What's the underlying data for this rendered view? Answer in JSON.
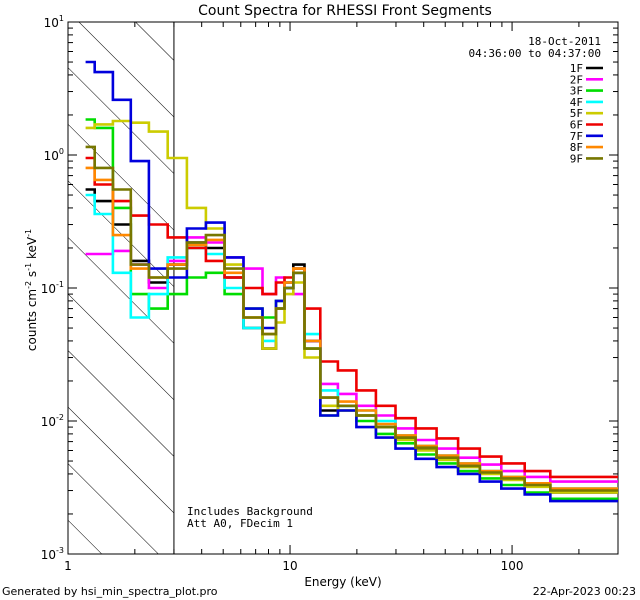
{
  "chart_data": {
    "type": "line",
    "title": "Count Spectra for RHESSI Front Segments",
    "xlabel": "Energy (keV)",
    "ylabel_parts": {
      "base": "counts cm",
      "exp1": "-2",
      "mid": " s",
      "exp2": "-1",
      "end": " keV",
      "exp3": "-1"
    },
    "xscale": "log",
    "yscale": "log",
    "xlim": [
      1,
      300
    ],
    "ylim": [
      0.001,
      10
    ],
    "x_ticks": [
      {
        "value": 1,
        "label": "1"
      },
      {
        "value": 10,
        "label": "10"
      },
      {
        "value": 100,
        "label": "100"
      }
    ],
    "y_ticks": [
      {
        "value": 10,
        "base": "10",
        "exp": "1"
      },
      {
        "value": 1,
        "base": "10",
        "exp": "0"
      },
      {
        "value": 0.1,
        "base": "10",
        "exp": "-1"
      },
      {
        "value": 0.01,
        "base": "10",
        "exp": "-2"
      },
      {
        "value": 0.001,
        "base": "10",
        "exp": "-3"
      }
    ],
    "shaded_region": {
      "x_start": 1,
      "x_end": 3,
      "pattern": "diagonal-hatch"
    },
    "annotations": {
      "date": "18-Oct-2011",
      "time_range": "04:36:00 to 04:37:00",
      "background_note": "Includes Background",
      "attenuator_note": "Att A0, FDecim 1"
    },
    "legend_position": "top-right",
    "series": [
      {
        "name": "1F",
        "color": "#000000",
        "values": [
          0.55,
          0.45,
          0.3,
          0.16,
          0.11,
          0.15,
          0.22,
          0.2,
          0.12,
          0.05,
          0.035,
          0.07,
          0.11,
          0.15,
          0.04,
          0.012,
          0.013,
          0.011,
          0.009,
          0.0075,
          0.0062,
          0.0052,
          0.0046,
          0.0041,
          0.0037,
          0.0033,
          0.0029
        ]
      },
      {
        "name": "2F",
        "color": "#ff00ff",
        "values": [
          0.18,
          0.18,
          0.19,
          0.15,
          0.1,
          0.16,
          0.24,
          0.22,
          0.17,
          0.14,
          0.09,
          0.12,
          0.1,
          0.09,
          0.04,
          0.019,
          0.016,
          0.013,
          0.011,
          0.0088,
          0.0072,
          0.0062,
          0.0053,
          0.0047,
          0.0042,
          0.0038,
          0.0035
        ]
      },
      {
        "name": "3F",
        "color": "#00dd00",
        "values": [
          1.85,
          1.6,
          0.4,
          0.09,
          0.07,
          0.09,
          0.12,
          0.13,
          0.09,
          0.07,
          0.06,
          0.08,
          0.1,
          0.13,
          0.035,
          0.011,
          0.012,
          0.01,
          0.008,
          0.0068,
          0.0056,
          0.0048,
          0.0042,
          0.0037,
          0.0033,
          0.0029,
          0.0026
        ]
      },
      {
        "name": "4F",
        "color": "#00ffff",
        "values": [
          0.5,
          0.36,
          0.13,
          0.06,
          0.09,
          0.17,
          0.2,
          0.18,
          0.1,
          0.05,
          0.04,
          0.07,
          0.1,
          0.14,
          0.045,
          0.017,
          0.013,
          0.012,
          0.01,
          0.0078,
          0.0065,
          0.0055,
          0.0048,
          0.0042,
          0.0038,
          0.0034,
          0.0031
        ]
      },
      {
        "name": "5F",
        "color": "#cccc00",
        "values": [
          1.6,
          1.7,
          1.8,
          1.75,
          1.5,
          0.95,
          0.4,
          0.28,
          0.15,
          0.06,
          0.035,
          0.055,
          0.09,
          0.11,
          0.03,
          0.013,
          0.012,
          0.011,
          0.009,
          0.0072,
          0.006,
          0.0051,
          0.0045,
          0.004,
          0.0036,
          0.0032,
          0.0029
        ]
      },
      {
        "name": "6F",
        "color": "#ee0000",
        "values": [
          0.95,
          0.6,
          0.45,
          0.35,
          0.3,
          0.24,
          0.2,
          0.16,
          0.12,
          0.1,
          0.09,
          0.11,
          0.12,
          0.14,
          0.07,
          0.028,
          0.024,
          0.017,
          0.013,
          0.0105,
          0.0088,
          0.0074,
          0.0062,
          0.0054,
          0.0048,
          0.0042,
          0.0038
        ]
      },
      {
        "name": "7F",
        "color": "#0000dd",
        "values": [
          5.0,
          4.2,
          2.6,
          0.9,
          0.14,
          0.12,
          0.28,
          0.31,
          0.17,
          0.07,
          0.05,
          0.08,
          0.1,
          0.13,
          0.04,
          0.011,
          0.012,
          0.009,
          0.0075,
          0.0062,
          0.0052,
          0.0045,
          0.004,
          0.0035,
          0.0031,
          0.0028,
          0.0025
        ]
      },
      {
        "name": "8F",
        "color": "#ff8800",
        "values": [
          0.8,
          0.65,
          0.25,
          0.14,
          0.12,
          0.15,
          0.21,
          0.23,
          0.13,
          0.06,
          0.045,
          0.07,
          0.11,
          0.14,
          0.04,
          0.015,
          0.014,
          0.012,
          0.0095,
          0.0078,
          0.0065,
          0.0055,
          0.0048,
          0.0042,
          0.0038,
          0.0034,
          0.0031
        ]
      },
      {
        "name": "9F",
        "color": "#777700",
        "values": [
          1.15,
          0.8,
          0.55,
          0.15,
          0.12,
          0.14,
          0.22,
          0.25,
          0.14,
          0.06,
          0.045,
          0.07,
          0.1,
          0.13,
          0.035,
          0.015,
          0.013,
          0.011,
          0.009,
          0.0075,
          0.0063,
          0.0053,
          0.0046,
          0.0041,
          0.0037,
          0.0033,
          0.003
        ]
      }
    ],
    "energy_bins": [
      1.2,
      1.45,
      1.75,
      2.1,
      2.55,
      3.1,
      3.8,
      4.6,
      5.6,
      6.8,
      8.3,
      9.0,
      9.9,
      10.8,
      12.5,
      15,
      18,
      22,
      27,
      33,
      41,
      51,
      64,
      80,
      100,
      130,
      170
    ]
  },
  "footer": {
    "left": "Generated by hsi_min_spectra_plot.pro",
    "right": "22-Apr-2023 00:23"
  }
}
